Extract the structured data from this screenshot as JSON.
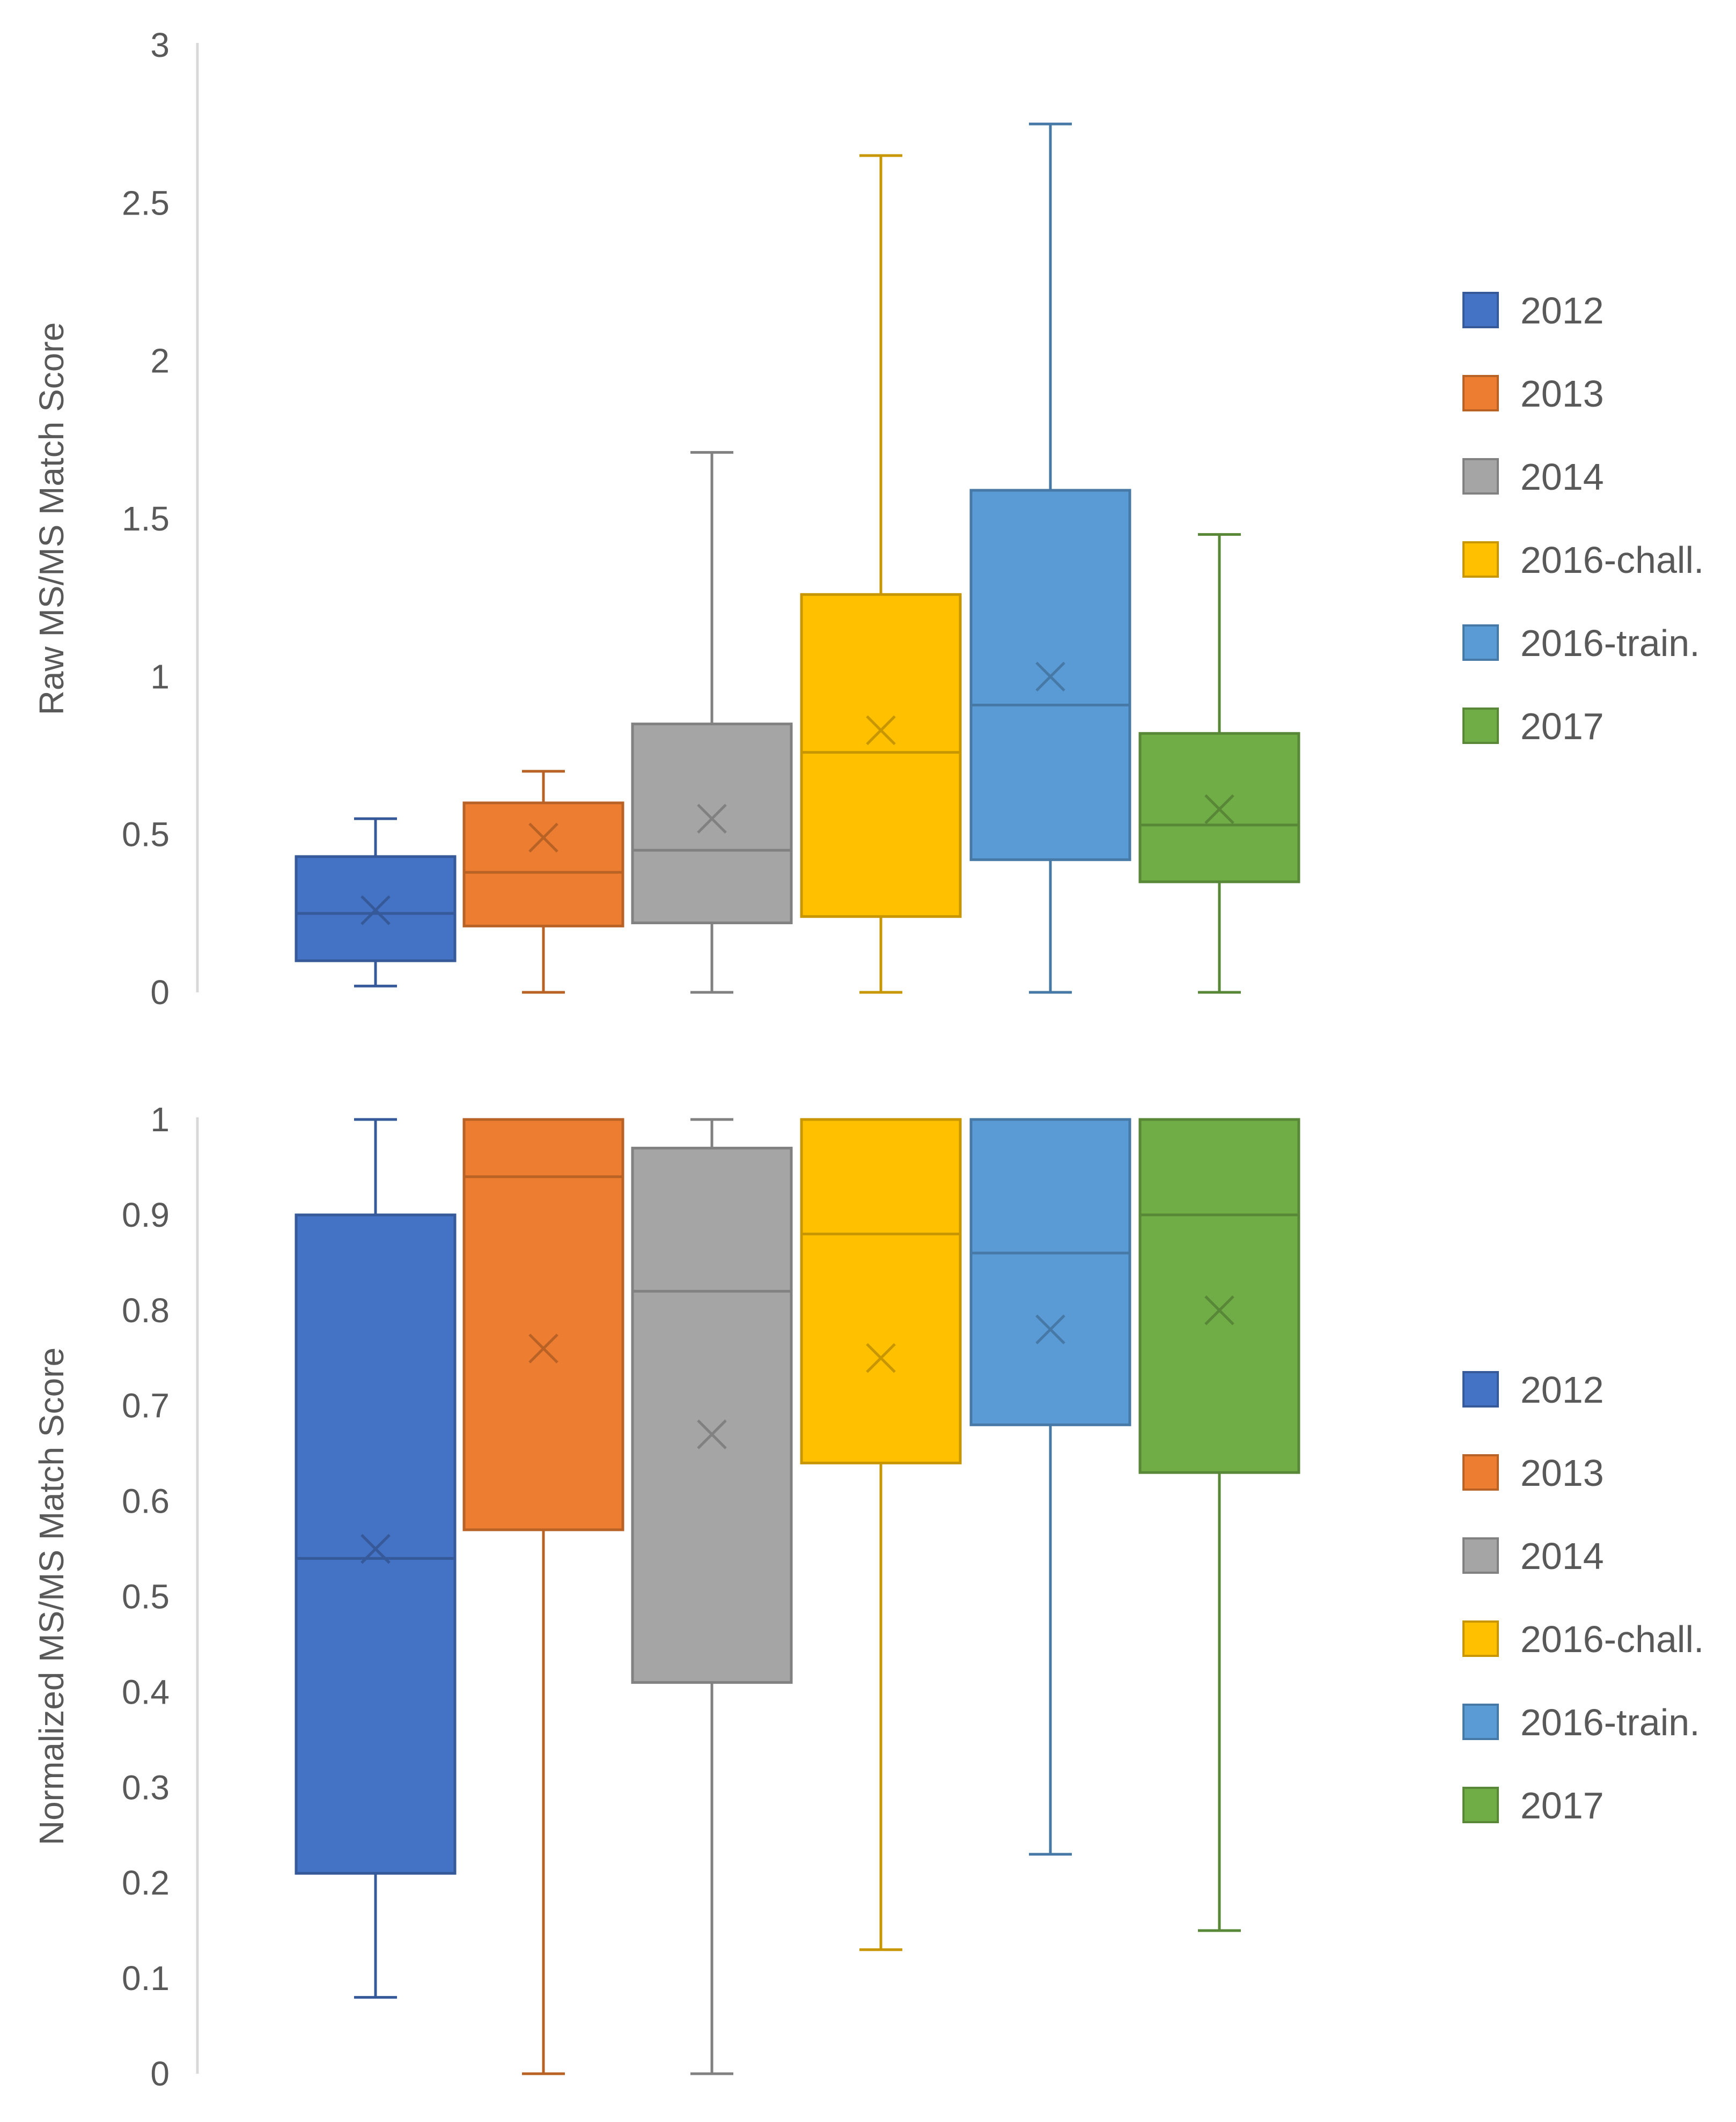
{
  "chart_data": [
    {
      "type": "box",
      "title": "",
      "xlabel": "",
      "ylabel": "Raw MS/MS Match Score",
      "ylim": [
        0,
        3
      ],
      "yticks": [
        0,
        0.5,
        1,
        1.5,
        2,
        2.5,
        3
      ],
      "ytick_labels": [
        "0",
        "0.5",
        "1",
        "1.5",
        "2",
        "2.5",
        "3"
      ],
      "grid": false,
      "legend_position": "right",
      "series": [
        {
          "name": "2012",
          "color": "#4472C4",
          "whisker_low": 0.02,
          "q1": 0.1,
          "median": 0.25,
          "q3": 0.43,
          "whisker_high": 0.55,
          "mean": 0.26
        },
        {
          "name": "2013",
          "color": "#ED7D31",
          "whisker_low": 0.0,
          "q1": 0.21,
          "median": 0.38,
          "q3": 0.6,
          "whisker_high": 0.7,
          "mean": 0.49
        },
        {
          "name": "2014",
          "color": "#A5A5A5",
          "whisker_low": 0.0,
          "q1": 0.22,
          "median": 0.45,
          "q3": 0.85,
          "whisker_high": 1.71,
          "mean": 0.55
        },
        {
          "name": "2016-chall.",
          "color": "#FFC000",
          "whisker_low": 0.0,
          "q1": 0.24,
          "median": 0.76,
          "q3": 1.26,
          "whisker_high": 2.65,
          "mean": 0.83
        },
        {
          "name": "2016-train.",
          "color": "#5B9BD5",
          "whisker_low": 0.0,
          "q1": 0.42,
          "median": 0.91,
          "q3": 1.59,
          "whisker_high": 2.75,
          "mean": 1.0
        },
        {
          "name": "2017",
          "color": "#70AD47",
          "whisker_low": 0.0,
          "q1": 0.35,
          "median": 0.53,
          "q3": 0.82,
          "whisker_high": 1.45,
          "mean": 0.58
        }
      ]
    },
    {
      "type": "box",
      "title": "",
      "xlabel": "",
      "ylabel": "Normalized MS/MS Match Score",
      "ylim": [
        0,
        1
      ],
      "yticks": [
        0,
        0.1,
        0.2,
        0.3,
        0.4,
        0.5,
        0.6,
        0.7,
        0.8,
        0.9,
        1
      ],
      "ytick_labels": [
        "0",
        "0.1",
        "0.2",
        "0.3",
        "0.4",
        "0.5",
        "0.6",
        "0.7",
        "0.8",
        "0.9",
        "1"
      ],
      "grid": false,
      "legend_position": "right",
      "series": [
        {
          "name": "2012",
          "color": "#4472C4",
          "whisker_low": 0.08,
          "q1": 0.21,
          "median": 0.54,
          "q3": 0.9,
          "whisker_high": 1.0,
          "mean": 0.55
        },
        {
          "name": "2013",
          "color": "#ED7D31",
          "whisker_low": 0.0,
          "q1": 0.57,
          "median": 0.94,
          "q3": 1.0,
          "whisker_high": 1.0,
          "mean": 0.76
        },
        {
          "name": "2014",
          "color": "#A5A5A5",
          "whisker_low": 0.0,
          "q1": 0.41,
          "median": 0.82,
          "q3": 0.97,
          "whisker_high": 1.0,
          "mean": 0.67
        },
        {
          "name": "2016-chall.",
          "color": "#FFC000",
          "whisker_low": 0.13,
          "q1": 0.64,
          "median": 0.88,
          "q3": 1.0,
          "whisker_high": 1.0,
          "mean": 0.75
        },
        {
          "name": "2016-train.",
          "color": "#5B9BD5",
          "whisker_low": 0.23,
          "q1": 0.68,
          "median": 0.86,
          "q3": 1.0,
          "whisker_high": 1.0,
          "mean": 0.78
        },
        {
          "name": "2017",
          "color": "#70AD47",
          "whisker_low": 0.15,
          "q1": 0.63,
          "median": 0.9,
          "q3": 1.0,
          "whisker_high": 1.0,
          "mean": 0.8
        }
      ]
    }
  ],
  "legend_items": [
    "2012",
    "2013",
    "2014",
    "2016-chall.",
    "2016-train.",
    "2017"
  ],
  "axis_color": "#D9D9D9",
  "text_color": "#595959"
}
